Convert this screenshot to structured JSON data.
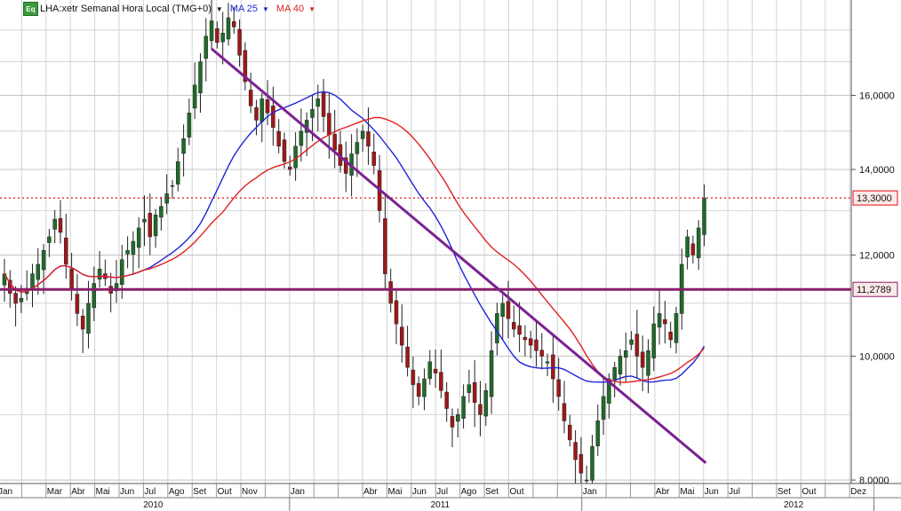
{
  "header": {
    "badge": "Eq",
    "title": "LHA:xetr Semanal Hora Local (TMG+0)",
    "ma25_label": "MA 25",
    "ma40_label": "MA 40",
    "dropdown_glyph": "▼"
  },
  "colors": {
    "up_candle": "#1f6b2a",
    "down_candle": "#a01818",
    "ma25": "#1e24d6",
    "ma40": "#e02020",
    "trendline": "#7a2290",
    "support": "#8a1d6a",
    "price_line": "#e01010",
    "grid": "#d4d4d4",
    "price_label_bg": "#fde8e8"
  },
  "chart_data": {
    "type": "candlestick",
    "title": "LHA:xetr Semanal Hora Local (TMG+0)",
    "yaxis": {
      "scale": "log",
      "range": [
        7.95,
        19.0
      ],
      "ticks": [
        8,
        10,
        12,
        14,
        16
      ],
      "tick_labels": [
        "8,0000",
        "10,0000",
        "12,0000",
        "14,0000",
        "16,0000"
      ],
      "side": "right"
    },
    "price_labels": [
      {
        "label": "13,3000",
        "value": 13.3,
        "style": "dotted-red"
      },
      {
        "label": "11,2789",
        "value": 11.2789,
        "style": "solid-support"
      }
    ],
    "xaxis": {
      "months": [
        "Jan",
        "Mar",
        "Abr",
        "Mai",
        "Jun",
        "Jul",
        "Ago",
        "Set",
        "Out",
        "Nov",
        "Jan",
        "Abr",
        "Mai",
        "Jun",
        "Jul",
        "Ago",
        "Set",
        "Out",
        "Jan",
        "Abr",
        "Mai",
        "Jun",
        "Jul",
        "Set",
        "Out",
        "Dez"
      ],
      "month_x": [
        0,
        2,
        3,
        4,
        5,
        6,
        7,
        8,
        9,
        10,
        12,
        15,
        16,
        17,
        18,
        19,
        20,
        21,
        24,
        27,
        28,
        29,
        30,
        32,
        33,
        35
      ],
      "years": [
        "2010",
        "2011",
        "2012"
      ],
      "year_x": [
        5.7,
        17.5,
        32.0
      ]
    },
    "series": [
      {
        "name": "LHA:xetr",
        "close": [
          11.6,
          11.2,
          11.0,
          11.1,
          11.3,
          11.6,
          11.8,
          12.1,
          12.4,
          12.8,
          12.5,
          11.8,
          11.3,
          10.8,
          10.5,
          11.0,
          11.4,
          11.7,
          11.5,
          11.2,
          11.4,
          11.9,
          12.1,
          12.3,
          12.6,
          12.8,
          12.4,
          12.9,
          13.1,
          13.4,
          13.6,
          14.2,
          14.8,
          15.5,
          16.3,
          17.0,
          17.8,
          18.3,
          17.6,
          17.9,
          18.4,
          18.1,
          17.2,
          16.4,
          15.7,
          15.3,
          15.9,
          15.5,
          15.1,
          14.6,
          14.2,
          14.0,
          14.6,
          15.0,
          15.3,
          15.6,
          15.9,
          15.4,
          14.9,
          14.5,
          14.1,
          13.9,
          14.4,
          14.7,
          15.0,
          14.6,
          14.1,
          13.0,
          11.6,
          11.0,
          10.6,
          10.2,
          9.8,
          9.5,
          9.3,
          9.6,
          9.9,
          9.7,
          9.4,
          9.1,
          8.8,
          9.0,
          9.3,
          9.5,
          9.2,
          9.0,
          9.4,
          10.1,
          10.8,
          11.0,
          10.7,
          10.5,
          10.4,
          10.3,
          10.2,
          10.1,
          10.0,
          9.9,
          9.6,
          9.3,
          8.9,
          8.6,
          8.3,
          8.1,
          8.0,
          8.5,
          8.9,
          9.3,
          9.6,
          9.8,
          10.0,
          10.1,
          10.3,
          10.0,
          9.8,
          10.1,
          10.6,
          10.8,
          10.6,
          10.3,
          10.8,
          11.8,
          12.4,
          12.0,
          12.6,
          13.3
        ]
      }
    ],
    "overlays": [
      {
        "name": "MA 25",
        "type": "moving_average",
        "period": 25
      },
      {
        "name": "MA 40",
        "type": "moving_average",
        "period": 40
      }
    ],
    "lines": [
      {
        "name": "trendline",
        "from": {
          "week": 37.0,
          "price": 17.4
        },
        "to": {
          "week": 125.3,
          "price": 8.25
        }
      },
      {
        "name": "support",
        "price": 11.2789
      }
    ],
    "grid": true
  }
}
